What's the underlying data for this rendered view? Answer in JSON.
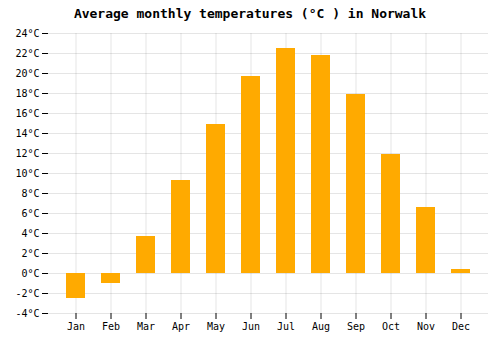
{
  "chart_data": {
    "type": "bar",
    "title": "Average monthly temperatures (°C ) in Norwalk",
    "categories": [
      "Jan",
      "Feb",
      "Mar",
      "Apr",
      "May",
      "Jun",
      "Jul",
      "Aug",
      "Sep",
      "Oct",
      "Nov",
      "Dec"
    ],
    "values": [
      -2.5,
      -1.0,
      3.7,
      9.3,
      14.9,
      19.7,
      22.5,
      21.8,
      17.9,
      11.9,
      6.6,
      0.4
    ],
    "color": "#FFAA00",
    "ylim": [
      -4,
      24
    ],
    "yticks": [
      {
        "value": -4,
        "label": "-4°C"
      },
      {
        "value": -2,
        "label": "-2°C"
      },
      {
        "value": 0,
        "label": "0°C"
      },
      {
        "value": 2,
        "label": "2°C"
      },
      {
        "value": 4,
        "label": "4°C"
      },
      {
        "value": 6,
        "label": "6°C"
      },
      {
        "value": 8,
        "label": "8°C"
      },
      {
        "value": 10,
        "label": "10°C"
      },
      {
        "value": 12,
        "label": "12°C"
      },
      {
        "value": 14,
        "label": "14°C"
      },
      {
        "value": 16,
        "label": "16°C"
      },
      {
        "value": 18,
        "label": "18°C"
      },
      {
        "value": 20,
        "label": "20°C"
      },
      {
        "value": 22,
        "label": "22°C"
      },
      {
        "value": 24,
        "label": "24°C"
      }
    ],
    "grid": true
  }
}
